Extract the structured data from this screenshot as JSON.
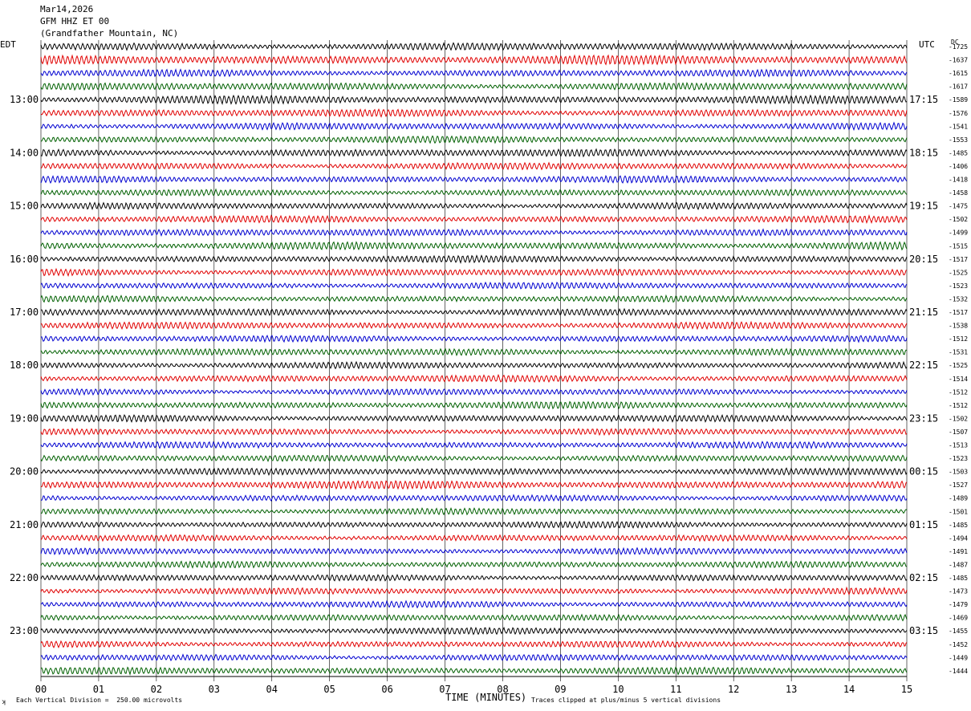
{
  "header": {
    "date": "Mar14,2026",
    "station": "GFM HHZ ET 00",
    "location": "(Grandfather Mountain, NC)"
  },
  "labels": {
    "left_tz": "EDT",
    "right_tz": "UTC",
    "dc": "DC"
  },
  "footer": {
    "scale_note": "Each Vertical Division =  250.00 microvolts",
    "clip_note": "Traces clipped at plus/minus 5 vertical divisions",
    "corner_mark": "ʞ"
  },
  "colors": {
    "trace_cycle": [
      "#000000",
      "#e00000",
      "#0000d0",
      "#006000"
    ],
    "grid": "#000000"
  },
  "chart_data": {
    "type": "line",
    "title": "",
    "xlabel": "TIME (MINUTES)",
    "ylabel": "",
    "xlim": [
      0,
      15
    ],
    "x_ticks": [
      "00",
      "01",
      "02",
      "03",
      "04",
      "05",
      "06",
      "07",
      "08",
      "09",
      "10",
      "11",
      "12",
      "13",
      "14",
      "15"
    ],
    "grid": true,
    "left_hour_labels": [
      {
        "line": 4,
        "text": "13:00"
      },
      {
        "line": 8,
        "text": "14:00"
      },
      {
        "line": 12,
        "text": "15:00"
      },
      {
        "line": 16,
        "text": "16:00"
      },
      {
        "line": 20,
        "text": "17:00"
      },
      {
        "line": 24,
        "text": "18:00"
      },
      {
        "line": 28,
        "text": "19:00"
      },
      {
        "line": 32,
        "text": "20:00"
      },
      {
        "line": 36,
        "text": "21:00"
      },
      {
        "line": 40,
        "text": "22:00"
      },
      {
        "line": 44,
        "text": "23:00"
      }
    ],
    "right_hour_labels": [
      {
        "line": 4,
        "text": "17:15"
      },
      {
        "line": 8,
        "text": "18:15"
      },
      {
        "line": 12,
        "text": "19:15"
      },
      {
        "line": 16,
        "text": "20:15"
      },
      {
        "line": 20,
        "text": "21:15"
      },
      {
        "line": 24,
        "text": "22:15"
      },
      {
        "line": 28,
        "text": "23:15"
      },
      {
        "line": 32,
        "text": "00:15"
      },
      {
        "line": 36,
        "text": "01:15"
      },
      {
        "line": 40,
        "text": "02:15"
      },
      {
        "line": 44,
        "text": "03:15"
      }
    ],
    "dc_offsets": [
      "-1725",
      "-1637",
      "-1615",
      "-1617",
      "-1589",
      "-1576",
      "-1541",
      "-1553",
      "-1485",
      "-1406",
      "-1418",
      "-1458",
      "-1475",
      "-1502",
      "-1499",
      "-1515",
      "-1517",
      "-1525",
      "-1523",
      "-1532",
      "-1517",
      "-1538",
      "-1512",
      "-1531",
      "-1525",
      "-1514",
      "-1512",
      "-1512",
      "-1502",
      "-1507",
      "-1513",
      "-1523",
      "-1503",
      "-1527",
      "-1489",
      "-1501",
      "-1485",
      "-1494",
      "-1491",
      "-1487",
      "-1485",
      "-1473",
      "-1479",
      "-1469",
      "-1455",
      "-1452",
      "-1449",
      "-1444"
    ],
    "series": [
      {
        "amplitude": 0.65
      },
      {
        "amplitude": 0.8
      },
      {
        "amplitude": 0.6
      },
      {
        "amplitude": 0.65
      },
      {
        "amplitude": 0.7
      },
      {
        "amplitude": 0.65
      },
      {
        "amplitude": 0.6
      },
      {
        "amplitude": 0.6
      },
      {
        "amplitude": 0.65
      },
      {
        "amplitude": 0.6
      },
      {
        "amplitude": 0.6
      },
      {
        "amplitude": 0.55
      },
      {
        "amplitude": 0.55
      },
      {
        "amplitude": 0.6
      },
      {
        "amplitude": 0.6
      },
      {
        "amplitude": 0.65
      },
      {
        "amplitude": 0.6
      },
      {
        "amplitude": 0.6
      },
      {
        "amplitude": 0.55
      },
      {
        "amplitude": 0.55
      },
      {
        "amplitude": 0.6
      },
      {
        "amplitude": 0.6
      },
      {
        "amplitude": 0.55
      },
      {
        "amplitude": 0.6
      },
      {
        "amplitude": 0.55
      },
      {
        "amplitude": 0.6
      },
      {
        "amplitude": 0.55
      },
      {
        "amplitude": 0.6
      },
      {
        "amplitude": 0.6
      },
      {
        "amplitude": 0.55
      },
      {
        "amplitude": 0.55
      },
      {
        "amplitude": 0.55
      },
      {
        "amplitude": 0.6
      },
      {
        "amplitude": 0.7
      },
      {
        "amplitude": 0.55
      },
      {
        "amplitude": 0.55
      },
      {
        "amplitude": 0.55
      },
      {
        "amplitude": 0.55
      },
      {
        "amplitude": 0.55
      },
      {
        "amplitude": 0.55
      },
      {
        "amplitude": 0.55
      },
      {
        "amplitude": 0.55
      },
      {
        "amplitude": 0.55
      },
      {
        "amplitude": 0.55
      },
      {
        "amplitude": 0.55
      },
      {
        "amplitude": 0.55
      },
      {
        "amplitude": 0.55
      },
      {
        "amplitude": 0.6
      }
    ]
  }
}
